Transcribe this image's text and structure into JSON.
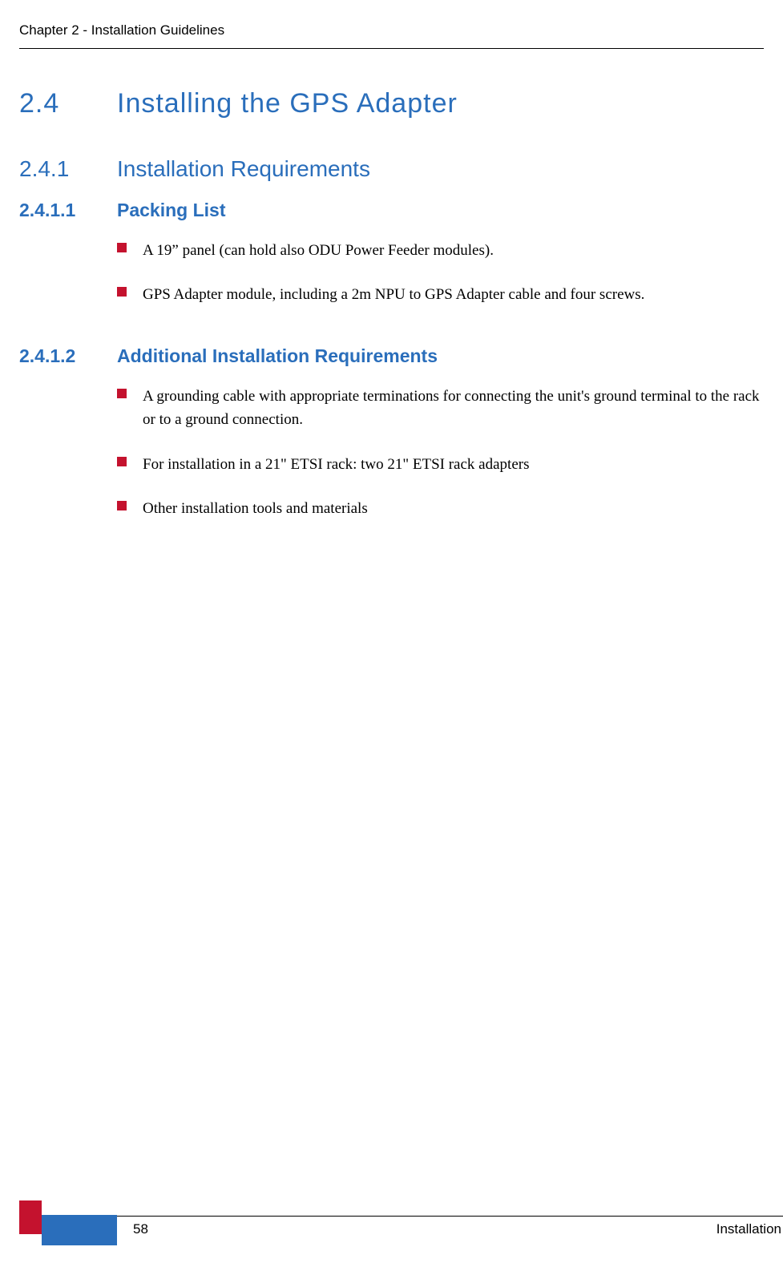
{
  "header": {
    "chapter_label": "Chapter 2 - Installation Guidelines"
  },
  "section_2_4": {
    "number": "2.4",
    "title": "Installing the GPS Adapter"
  },
  "section_2_4_1": {
    "number": "2.4.1",
    "title": "Installation Requirements"
  },
  "section_2_4_1_1": {
    "number": "2.4.1.1",
    "title": "Packing List",
    "items": [
      "A 19” panel (can hold also ODU Power Feeder modules).",
      "GPS Adapter module, including a 2m NPU to GPS Adapter cable and four screws."
    ]
  },
  "section_2_4_1_2": {
    "number": "2.4.1.2",
    "title": "Additional Installation Requirements",
    "items": [
      "A grounding cable with appropriate terminations for connecting the unit's ground terminal to the rack or to a ground connection.",
      "For installation in a 21\" ETSI rack: two 21\" ETSI rack adapters",
      "Other installation tools and materials"
    ]
  },
  "footer": {
    "page_number": "58",
    "right_label": "Installation"
  },
  "colors": {
    "heading_blue": "#2a6ebb",
    "bullet_red": "#c4122e",
    "text_black": "#000000",
    "background": "#ffffff"
  }
}
